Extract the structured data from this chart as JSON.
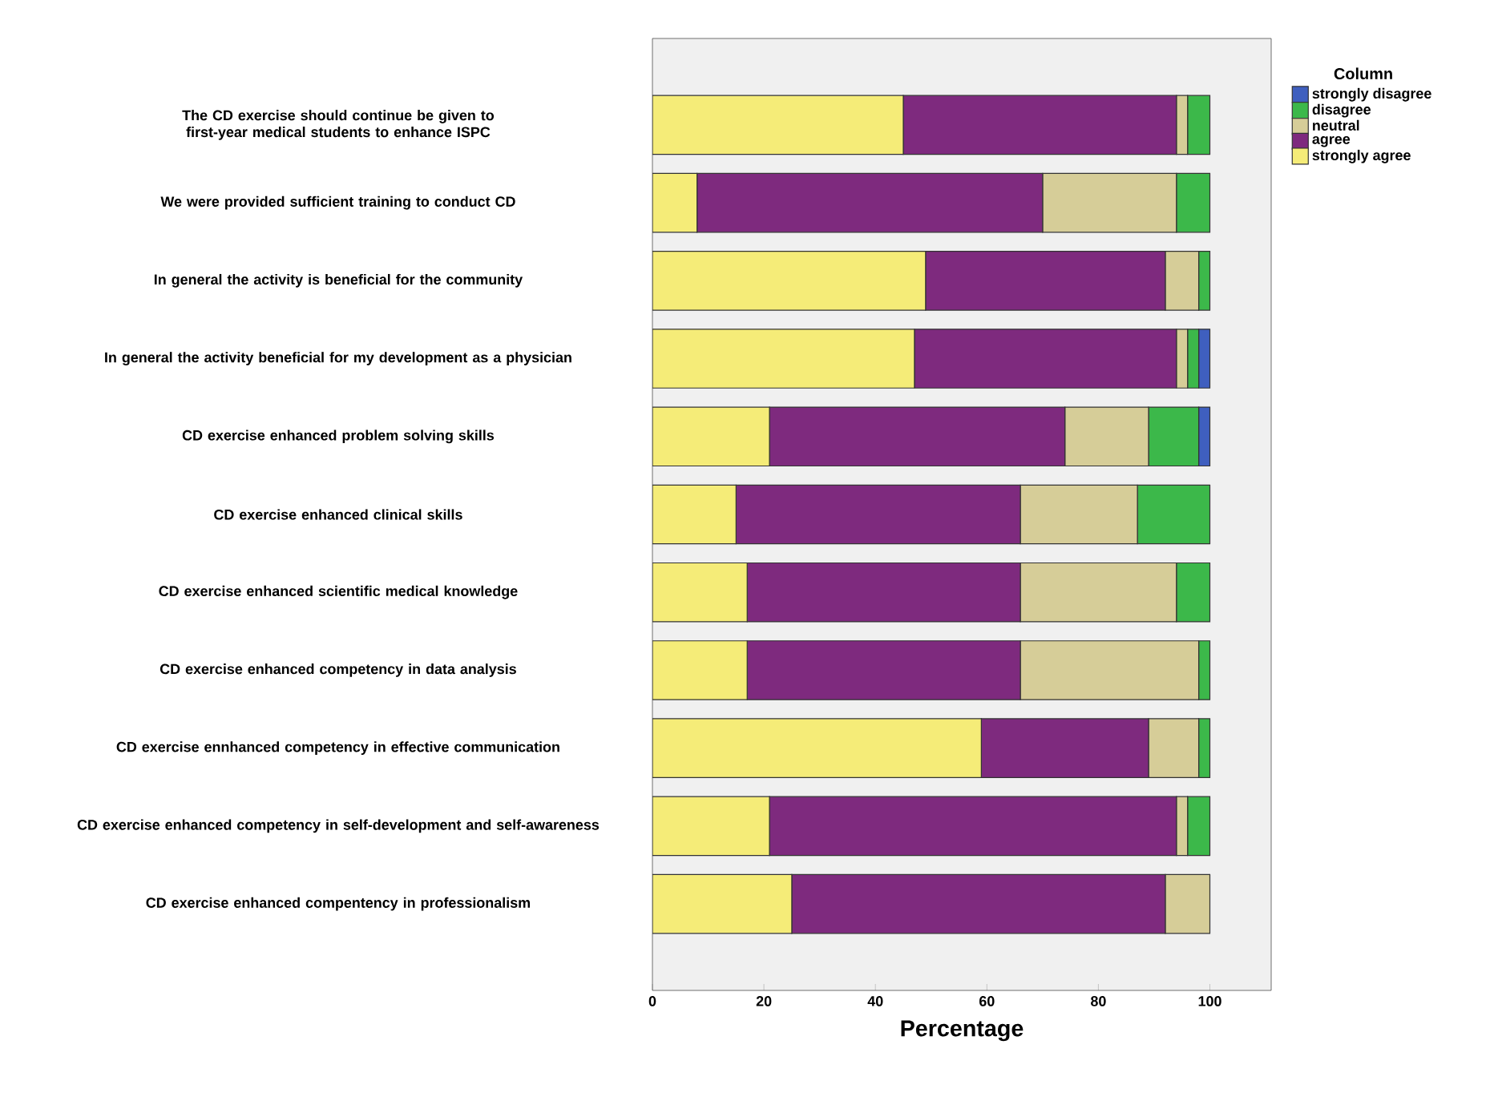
{
  "chart_data": {
    "type": "bar",
    "orientation": "horizontal",
    "stacked": true,
    "categories": [
      "The CD exercise should continue be given to first-year medical students to enhance ISPC",
      "We were provided sufficient training to conduct CD",
      "In general the activity is beneficial for the community",
      "In general the activity beneficial for my development as a physician",
      "CD exercise enhanced problem solving skills",
      "CD exercise enhanced clinical skills",
      "CD exercise enhanced scientific medical knowledge",
      "CD exercise enhanced competency in data analysis",
      "CD exercise ennhanced competency in effective communication",
      "CD exercise enhanced competency in self-development and self-awareness",
      "CD exercise enhanced compentency in professionalism"
    ],
    "series": [
      {
        "name": "strongly agree",
        "color": "#f5ec78",
        "values": [
          45,
          8,
          49,
          47,
          21,
          15,
          17,
          17,
          59,
          21,
          25
        ]
      },
      {
        "name": "agree",
        "color": "#7e2a7e",
        "values": [
          49,
          62,
          43,
          47,
          53,
          51,
          49,
          49,
          30,
          73,
          67
        ]
      },
      {
        "name": "neutral",
        "color": "#d6cd98",
        "values": [
          2,
          24,
          6,
          2,
          15,
          21,
          28,
          32,
          9,
          2,
          8
        ]
      },
      {
        "name": "disagree",
        "color": "#3cb84a",
        "values": [
          4,
          6,
          2,
          2,
          9,
          13,
          6,
          2,
          2,
          4,
          0
        ]
      },
      {
        "name": "strongly disagree",
        "color": "#3f5fbf",
        "values": [
          0,
          0,
          0,
          2,
          2,
          0,
          0,
          0,
          0,
          0,
          0
        ]
      }
    ],
    "xlim": [
      0,
      111
    ],
    "xticks": [
      0,
      20,
      40,
      60,
      80,
      100
    ],
    "xlabel": "Percentage",
    "legend_title": "Column",
    "legend": "top right",
    "grid": false
  }
}
